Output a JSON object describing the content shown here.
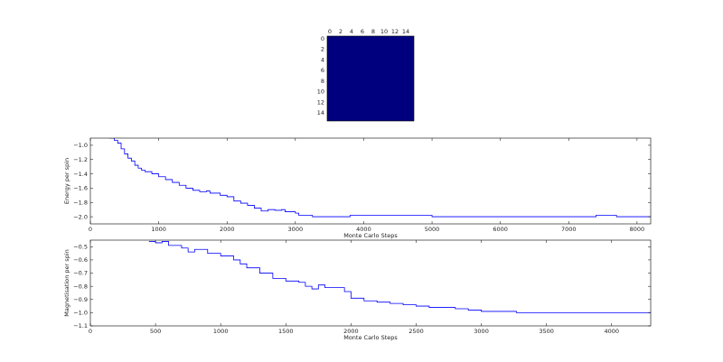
{
  "chart_data": [
    {
      "type": "heatmap",
      "title": "",
      "grid_size": [
        16,
        16
      ],
      "x_ticks": [
        "0",
        "2",
        "4",
        "6",
        "8",
        "10",
        "12",
        "14"
      ],
      "y_ticks": [
        "0",
        "2",
        "4",
        "6",
        "8",
        "10",
        "12",
        "14"
      ],
      "uniform_value": -1,
      "color": "#00007f"
    },
    {
      "type": "line",
      "xlabel": "Monte Carlo Steps",
      "ylabel": "Energy per spin",
      "xlim": [
        0,
        8200
      ],
      "ylim": [
        -2.1,
        -0.9
      ],
      "x_ticks": [
        "0",
        "1000",
        "2000",
        "3000",
        "4000",
        "5000",
        "6000",
        "7000",
        "8000"
      ],
      "y_ticks": [
        "-1.0",
        "-1.2",
        "-1.4",
        "-1.6",
        "-1.8",
        "-2.0"
      ],
      "color": "#0000ff",
      "x": [
        280,
        350,
        400,
        450,
        500,
        550,
        600,
        650,
        700,
        750,
        800,
        900,
        1000,
        1100,
        1200,
        1300,
        1400,
        1500,
        1600,
        1700,
        1750,
        1800,
        1900,
        2000,
        2100,
        2200,
        2300,
        2400,
        2500,
        2600,
        2700,
        2800,
        2850,
        3000,
        3050,
        3250,
        3750,
        3800,
        4950,
        5000,
        7380,
        7400,
        7680,
        7700,
        8200
      ],
      "values": [
        -0.9,
        -0.93,
        -0.97,
        -1.05,
        -1.12,
        -1.18,
        -1.22,
        -1.28,
        -1.32,
        -1.35,
        -1.37,
        -1.4,
        -1.44,
        -1.48,
        -1.52,
        -1.56,
        -1.6,
        -1.63,
        -1.65,
        -1.64,
        -1.67,
        -1.67,
        -1.7,
        -1.72,
        -1.78,
        -1.81,
        -1.84,
        -1.88,
        -1.92,
        -1.9,
        -1.91,
        -1.9,
        -1.93,
        -1.95,
        -1.98,
        -2.0,
        -2.0,
        -1.98,
        -1.98,
        -2.0,
        -2.0,
        -1.98,
        -1.98,
        -2.0,
        -2.0
      ]
    },
    {
      "type": "line",
      "xlabel": "Monte Carlo Steps",
      "ylabel": "Magnetisation per spin",
      "xlim": [
        0,
        4300
      ],
      "ylim": [
        -1.1,
        -0.45
      ],
      "x_ticks": [
        "0",
        "500",
        "1000",
        "1500",
        "2000",
        "2500",
        "3000",
        "3500",
        "4000"
      ],
      "y_ticks": [
        "-0.5",
        "-0.6",
        "-0.7",
        "-0.8",
        "-0.9",
        "-1.0",
        "-1.1"
      ],
      "color": "#0000ff",
      "x": [
        450,
        500,
        550,
        600,
        700,
        750,
        800,
        900,
        1000,
        1100,
        1150,
        1200,
        1300,
        1400,
        1500,
        1600,
        1650,
        1700,
        1750,
        1800,
        1900,
        1950,
        2000,
        2100,
        2200,
        2300,
        2400,
        2500,
        2600,
        2700,
        2800,
        2900,
        3000,
        3050,
        3270,
        3730,
        4300
      ],
      "values": [
        -0.46,
        -0.47,
        -0.46,
        -0.49,
        -0.51,
        -0.54,
        -0.52,
        -0.55,
        -0.57,
        -0.6,
        -0.63,
        -0.66,
        -0.7,
        -0.74,
        -0.76,
        -0.77,
        -0.8,
        -0.82,
        -0.79,
        -0.81,
        -0.81,
        -0.84,
        -0.89,
        -0.91,
        -0.92,
        -0.93,
        -0.94,
        -0.95,
        -0.96,
        -0.96,
        -0.97,
        -0.98,
        -0.99,
        -0.99,
        -1.0,
        -1.0,
        -0.99
      ]
    }
  ]
}
